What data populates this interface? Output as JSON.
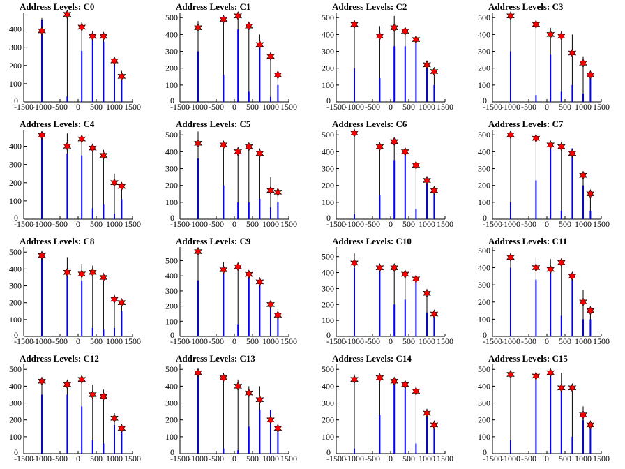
{
  "chart_data": [
    {
      "type": "bar",
      "title": "Address Levels: C0",
      "xlim": [
        -1500,
        1500
      ],
      "ylim": [
        0,
        490
      ],
      "x_ticks": [
        "-1500",
        "-1000",
        "-500",
        "0",
        "500",
        "1000",
        "1500"
      ],
      "y_ticks": [
        "100",
        "200",
        "300",
        "400"
      ],
      "y_zero": "0",
      "levels": [
        -1000,
        -300,
        100,
        400,
        700,
        1000,
        1200
      ],
      "peak": [
        460,
        480,
        440,
        390,
        360,
        230,
        170
      ],
      "fill": [
        450,
        30,
        280,
        350,
        330,
        210,
        140
      ],
      "stars": [
        390,
        480,
        410,
        360,
        360,
        225,
        140
      ]
    },
    {
      "type": "bar",
      "title": "Address Levels: C1",
      "xlim": [
        -1500,
        1500
      ],
      "ylim": [
        0,
        530
      ],
      "x_ticks": [
        "-1500",
        "-1000",
        "-500",
        "0",
        "500",
        "1000",
        "1500"
      ],
      "y_ticks": [
        "100",
        "200",
        "300",
        "400",
        "500"
      ],
      "y_zero": "0",
      "levels": [
        -1000,
        -300,
        100,
        400,
        700,
        1000,
        1200
      ],
      "peak": [
        480,
        510,
        520,
        450,
        400,
        280,
        180
      ],
      "fill": [
        300,
        160,
        430,
        60,
        320,
        30,
        100
      ],
      "stars": [
        440,
        490,
        510,
        450,
        340,
        270,
        160
      ]
    },
    {
      "type": "bar",
      "title": "Address Levels: C2",
      "xlim": [
        -1500,
        1500
      ],
      "ylim": [
        0,
        530
      ],
      "x_ticks": [
        "-1500",
        "-1000",
        "-500",
        "0",
        "500",
        "1000",
        "1500"
      ],
      "y_ticks": [
        "100",
        "200",
        "300",
        "400",
        "500"
      ],
      "y_zero": "0",
      "levels": [
        -1000,
        -300,
        100,
        400,
        700,
        1000,
        1200
      ],
      "peak": [
        470,
        450,
        510,
        440,
        380,
        230,
        200
      ],
      "fill": [
        200,
        140,
        330,
        330,
        360,
        200,
        100
      ],
      "stars": [
        460,
        390,
        440,
        420,
        370,
        220,
        180
      ]
    },
    {
      "type": "bar",
      "title": "Address Levels: C3",
      "xlim": [
        -1500,
        1500
      ],
      "ylim": [
        0,
        530
      ],
      "x_ticks": [
        "-1500",
        "-1000",
        "-500",
        "0",
        "500",
        "1000",
        "1500"
      ],
      "y_ticks": [
        "100",
        "200",
        "300",
        "400",
        "500"
      ],
      "y_zero": "0",
      "levels": [
        -1000,
        -300,
        100,
        400,
        700,
        1000,
        1200
      ],
      "peak": [
        520,
        490,
        440,
        420,
        400,
        270,
        170
      ],
      "fill": [
        300,
        40,
        280,
        60,
        100,
        50,
        140
      ],
      "stars": [
        510,
        460,
        400,
        390,
        290,
        230,
        160
      ]
    },
    {
      "type": "bar",
      "title": "Address Levels: C4",
      "xlim": [
        -1500,
        1500
      ],
      "ylim": [
        0,
        490
      ],
      "x_ticks": [
        "-1500",
        "-1000",
        "-500",
        "0",
        "500",
        "1000",
        "1500"
      ],
      "y_ticks": [
        "100",
        "200",
        "300",
        "400"
      ],
      "y_zero": "0",
      "levels": [
        -1000,
        -300,
        100,
        400,
        700,
        1000,
        1200
      ],
      "peak": [
        460,
        470,
        460,
        410,
        380,
        250,
        190
      ],
      "fill": [
        450,
        360,
        350,
        60,
        80,
        30,
        110
      ],
      "stars": [
        460,
        400,
        440,
        390,
        350,
        200,
        180
      ]
    },
    {
      "type": "bar",
      "title": "Address Levels: C5",
      "xlim": [
        -1500,
        1500
      ],
      "ylim": [
        0,
        530
      ],
      "x_ticks": [
        "-1500",
        "-1000",
        "-500",
        "0",
        "500",
        "1000",
        "1500"
      ],
      "y_ticks": [
        "100",
        "200",
        "300",
        "400",
        "500"
      ],
      "y_zero": "0",
      "levels": [
        -1000,
        -300,
        100,
        400,
        700,
        1000,
        1200
      ],
      "peak": [
        520,
        450,
        430,
        440,
        420,
        250,
        180
      ],
      "fill": [
        360,
        200,
        100,
        100,
        120,
        70,
        100
      ],
      "stars": [
        450,
        440,
        400,
        430,
        390,
        170,
        160
      ]
    },
    {
      "type": "bar",
      "title": "Address Levels: C6",
      "xlim": [
        -1500,
        1500
      ],
      "ylim": [
        0,
        530
      ],
      "x_ticks": [
        "-1500",
        "-1000",
        "-500",
        "0",
        "500",
        "1000",
        "1500"
      ],
      "y_ticks": [
        "100",
        "200",
        "300",
        "400",
        "500"
      ],
      "y_zero": "0",
      "levels": [
        -1000,
        -300,
        100,
        400,
        700,
        1000,
        1200
      ],
      "peak": [
        530,
        450,
        470,
        410,
        350,
        250,
        190
      ],
      "fill": [
        30,
        140,
        350,
        400,
        60,
        230,
        150
      ],
      "stars": [
        510,
        430,
        460,
        400,
        320,
        230,
        170
      ]
    },
    {
      "type": "bar",
      "title": "Address Levels: C7",
      "xlim": [
        -1500,
        1500
      ],
      "ylim": [
        0,
        530
      ],
      "x_ticks": [
        "-1500",
        "-1000",
        "-500",
        "0",
        "500",
        "1000",
        "1500"
      ],
      "y_ticks": [
        "100",
        "200",
        "300",
        "400",
        "500"
      ],
      "y_zero": "0",
      "levels": [
        -1000,
        -300,
        100,
        400,
        700,
        1000,
        1200
      ],
      "peak": [
        510,
        490,
        460,
        460,
        420,
        270,
        170
      ],
      "fill": [
        100,
        230,
        430,
        50,
        420,
        200,
        50
      ],
      "stars": [
        500,
        480,
        440,
        430,
        390,
        260,
        150
      ]
    },
    {
      "type": "bar",
      "title": "Address Levels: C8",
      "xlim": [
        -1500,
        1500
      ],
      "ylim": [
        0,
        530
      ],
      "x_ticks": [
        "-1500",
        "-1000",
        "-500",
        "0",
        "500",
        "1000",
        "1500"
      ],
      "y_ticks": [
        "100",
        "200",
        "300",
        "400",
        "500"
      ],
      "y_zero": "0",
      "levels": [
        -1000,
        -300,
        100,
        400,
        700,
        1000,
        1200
      ],
      "peak": [
        510,
        470,
        430,
        420,
        370,
        250,
        220
      ],
      "fill": [
        480,
        380,
        330,
        50,
        40,
        50,
        150
      ],
      "stars": [
        480,
        380,
        370,
        380,
        350,
        220,
        200
      ]
    },
    {
      "type": "bar",
      "title": "Address Levels: C9",
      "xlim": [
        -1500,
        1500
      ],
      "ylim": [
        0,
        590
      ],
      "x_ticks": [
        "-1500",
        "-1000",
        "-500",
        "0",
        "500",
        "1000",
        "1500"
      ],
      "y_ticks": [
        "100",
        "200",
        "300",
        "400",
        "500"
      ],
      "y_zero": "0",
      "levels": [
        -1000,
        -300,
        100,
        400,
        700,
        1000,
        1200
      ],
      "peak": [
        570,
        490,
        480,
        430,
        390,
        230,
        180
      ],
      "fill": [
        370,
        430,
        80,
        400,
        350,
        200,
        130
      ],
      "stars": [
        560,
        440,
        460,
        410,
        360,
        210,
        140
      ]
    },
    {
      "type": "bar",
      "title": "Address Levels: C10",
      "xlim": [
        -1500,
        1500
      ],
      "ylim": [
        0,
        560
      ],
      "x_ticks": [
        "-1500",
        "-1000",
        "-500",
        "0",
        "500",
        "1000",
        "1500"
      ],
      "y_ticks": [
        "100",
        "200",
        "300",
        "400",
        "500"
      ],
      "y_zero": "0",
      "levels": [
        -1000,
        -300,
        100,
        400,
        700,
        1000,
        1200
      ],
      "peak": [
        520,
        440,
        450,
        400,
        380,
        290,
        160
      ],
      "fill": [
        430,
        420,
        200,
        230,
        340,
        150,
        140
      ],
      "stars": [
        460,
        430,
        430,
        390,
        360,
        270,
        140
      ]
    },
    {
      "type": "bar",
      "title": "Address Levels: C11",
      "xlim": [
        -1500,
        1500
      ],
      "ylim": [
        0,
        520
      ],
      "x_ticks": [
        "-1500",
        "-1000",
        "-500",
        "0",
        "500",
        "1000",
        "1500"
      ],
      "y_ticks": [
        "100",
        "200",
        "300",
        "400",
        "500"
      ],
      "y_zero": "0",
      "levels": [
        -1000,
        -300,
        100,
        400,
        700,
        1000,
        1200
      ],
      "peak": [
        460,
        460,
        450,
        450,
        370,
        270,
        170
      ],
      "fill": [
        400,
        330,
        390,
        120,
        350,
        100,
        100
      ],
      "stars": [
        460,
        400,
        390,
        430,
        350,
        200,
        150
      ]
    },
    {
      "type": "bar",
      "title": "Address Levels: C12",
      "xlim": [
        -1500,
        1500
      ],
      "ylim": [
        0,
        530
      ],
      "x_ticks": [
        "-1500",
        "-1000",
        "-500",
        "0",
        "500",
        "1000",
        "1500"
      ],
      "y_ticks": [
        "100",
        "200",
        "300",
        "400",
        "500"
      ],
      "y_zero": "0",
      "levels": [
        -1000,
        -300,
        100,
        400,
        700,
        1000,
        1200
      ],
      "peak": [
        450,
        440,
        460,
        410,
        380,
        240,
        170
      ],
      "fill": [
        350,
        350,
        280,
        80,
        60,
        170,
        140
      ],
      "stars": [
        430,
        410,
        440,
        350,
        340,
        210,
        150
      ]
    },
    {
      "type": "bar",
      "title": "Address Levels: C13",
      "xlim": [
        -1500,
        1500
      ],
      "ylim": [
        0,
        530
      ],
      "x_ticks": [
        "-1500",
        "-1000",
        "-500",
        "0",
        "500",
        "1000",
        "1500"
      ],
      "y_ticks": [
        "100",
        "200",
        "300",
        "400",
        "500"
      ],
      "y_zero": "0",
      "levels": [
        -1000,
        -300,
        100,
        400,
        700,
        1000,
        1200
      ],
      "peak": [
        500,
        480,
        440,
        400,
        400,
        260,
        170
      ],
      "fill": [
        490,
        30,
        20,
        160,
        260,
        260,
        150
      ],
      "stars": [
        480,
        450,
        400,
        360,
        320,
        200,
        150
      ]
    },
    {
      "type": "bar",
      "title": "Address Levels: C14",
      "xlim": [
        -1500,
        1500
      ],
      "ylim": [
        0,
        530
      ],
      "x_ticks": [
        "-1500",
        "-1000",
        "-500",
        "0",
        "500",
        "1000",
        "1500"
      ],
      "y_ticks": [
        "100",
        "200",
        "300",
        "400",
        "500"
      ],
      "y_zero": "0",
      "levels": [
        -1000,
        -300,
        100,
        400,
        700,
        1000,
        1200
      ],
      "peak": [
        470,
        470,
        450,
        430,
        400,
        260,
        180
      ],
      "fill": [
        30,
        230,
        420,
        400,
        60,
        220,
        150
      ],
      "stars": [
        440,
        450,
        430,
        410,
        370,
        240,
        170
      ]
    },
    {
      "type": "bar",
      "title": "Address Levels: C15",
      "xlim": [
        -1500,
        1500
      ],
      "ylim": [
        0,
        530
      ],
      "x_ticks": [
        "-1500",
        "-1000",
        "-500",
        "0",
        "500",
        "1000",
        "1500"
      ],
      "y_ticks": [
        "100",
        "200",
        "300",
        "400",
        "500"
      ],
      "y_zero": "0",
      "levels": [
        -1000,
        -300,
        100,
        400,
        700,
        1000,
        1200
      ],
      "peak": [
        490,
        490,
        500,
        480,
        400,
        280,
        190
      ],
      "fill": [
        80,
        450,
        470,
        390,
        100,
        200,
        150
      ],
      "stars": [
        470,
        460,
        480,
        390,
        390,
        230,
        170
      ]
    }
  ]
}
